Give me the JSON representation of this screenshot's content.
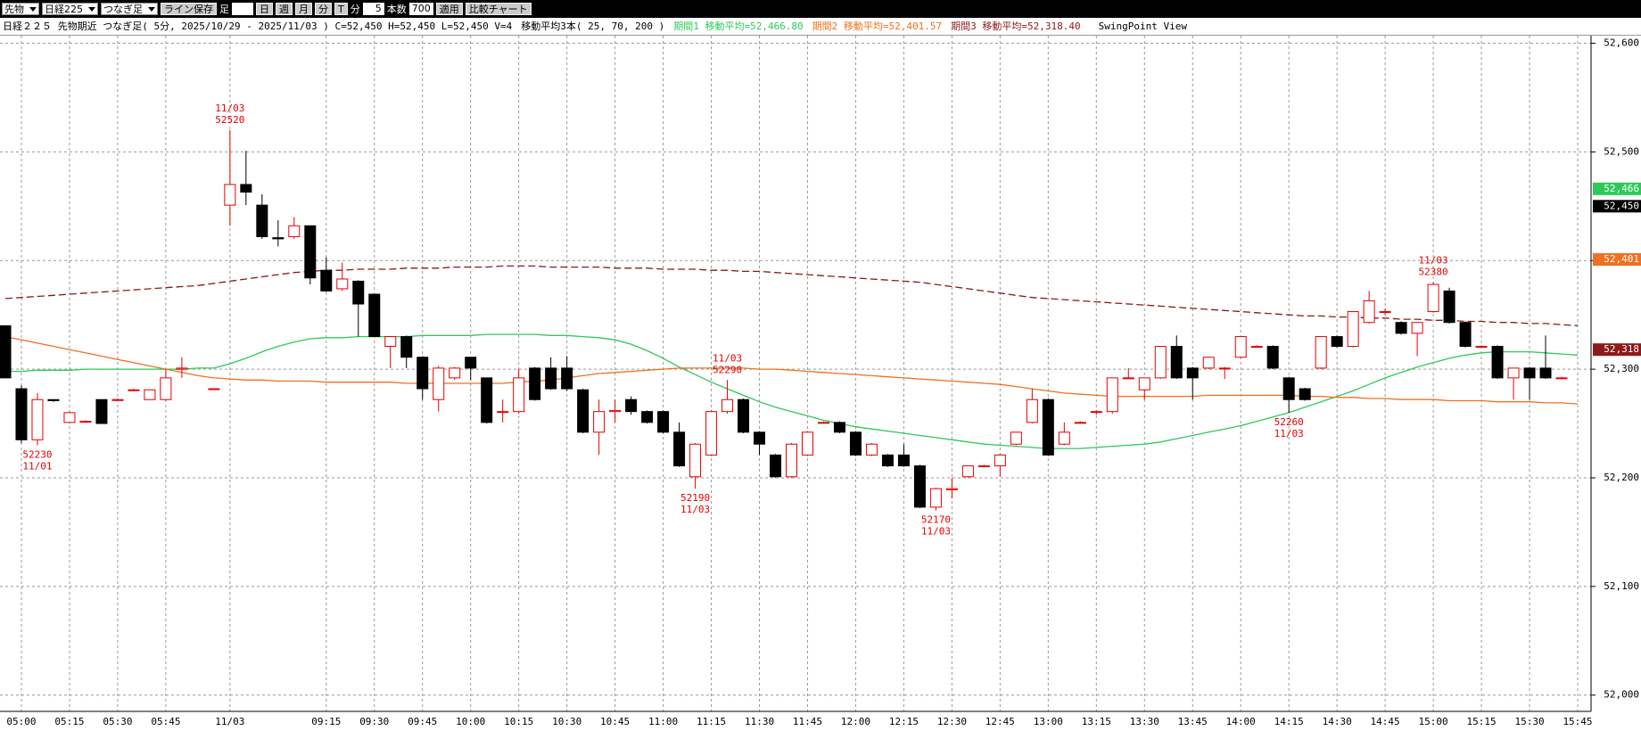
{
  "toolbar": [
    "先物",
    "日経225",
    "つなぎ足",
    "ライン保存",
    "足",
    "日",
    "週",
    "月",
    "分",
    "T",
    "分",
    "5",
    "本数",
    "700",
    "適用",
    "比較チャート"
  ],
  "header": {
    "title": "日経２２５ 先物期近 つなぎ足( 5分, 2025/10/29 - 2025/11/03 ) C=52,450 H=52,450 L=52,450 V=4",
    "ma_settings": "移動平均3本( 25, 70, 200 )",
    "view": "SwingPoint View"
  },
  "chart_data": {
    "type": "candlestick",
    "categories": [
      null,
      "05:00",
      null,
      null,
      "05:15",
      null,
      null,
      "05:30",
      null,
      null,
      "05:45",
      null,
      null,
      null,
      "11/03",
      null,
      null,
      null,
      null,
      null,
      "09:15",
      null,
      null,
      "09:30",
      null,
      null,
      "09:45",
      null,
      null,
      "10:00",
      null,
      null,
      "10:15",
      null,
      null,
      "10:30",
      null,
      null,
      "10:45",
      null,
      null,
      "11:00",
      null,
      null,
      "11:15",
      null,
      null,
      "11:30",
      null,
      null,
      "11:45",
      null,
      null,
      "12:00",
      null,
      null,
      "12:15",
      null,
      null,
      "12:30",
      null,
      null,
      "12:45",
      null,
      null,
      "13:00",
      null,
      null,
      "13:15",
      null,
      null,
      "13:30",
      null,
      null,
      "13:45",
      null,
      null,
      "14:00",
      null,
      null,
      "14:15",
      null,
      null,
      "14:30",
      null,
      null,
      "14:45",
      null,
      null,
      "15:00",
      null,
      null,
      "15:15",
      null,
      null,
      "15:30",
      null,
      null,
      "15:45"
    ],
    "open": [
      52340,
      52282,
      52235,
      52272,
      52251,
      52252,
      52272,
      52272,
      52281,
      52272,
      52272,
      52300,
      null,
      52282,
      52451,
      52470,
      52451,
      52421,
      52422,
      52432,
      52391,
      52374,
      52381,
      52369,
      52321,
      52330,
      52311,
      52272,
      52292,
      52311,
      52292,
      52261,
      52261,
      52301,
      52301,
      52301,
      52281,
      52242,
      52261,
      52272,
      52261,
      52261,
      52242,
      52201,
      52221,
      52261,
      52272,
      52242,
      52221,
      52201,
      52221,
      52251,
      52251,
      52242,
      52221,
      52221,
      52221,
      52211,
      52173,
      52189,
      52201,
      52211,
      52211,
      52231,
      52251,
      52272,
      52231,
      52251,
      52261,
      52261,
      52292,
      52281,
      52292,
      52321,
      52301,
      52301,
      52301,
      52311,
      52321,
      52321,
      52292,
      52282,
      52301,
      52330,
      52321,
      52343,
      52353,
      52343,
      52333,
      52353,
      52372,
      52343,
      52321,
      52321,
      52292,
      52301,
      52301,
      52292,
      null
    ],
    "high": [
      52340,
      52285,
      52278,
      52272,
      52261,
      52253,
      52272,
      52273,
      52282,
      52281,
      52300,
      52311,
      null,
      52282,
      52520,
      52501,
      52461,
      52437,
      52440,
      52432,
      52403,
      52398,
      52382,
      52369,
      52330,
      52331,
      52312,
      52303,
      52302,
      52311,
      52292,
      52272,
      52300,
      52302,
      52311,
      52312,
      52282,
      52272,
      52272,
      52275,
      52262,
      52262,
      52251,
      52232,
      52262,
      52290,
      52273,
      52243,
      52222,
      52232,
      52243,
      52252,
      52252,
      52243,
      52232,
      52222,
      52231,
      52212,
      52191,
      52200,
      52211,
      52212,
      52222,
      52242,
      52282,
      52273,
      52251,
      52252,
      52262,
      52292,
      52301,
      52292,
      52321,
      52331,
      52302,
      52311,
      52302,
      52330,
      52322,
      52322,
      52293,
      52283,
      52330,
      52331,
      52353,
      52372,
      52356,
      52344,
      52343,
      52380,
      52375,
      52344,
      52322,
      52322,
      52301,
      52302,
      52331,
      52293,
      null
    ],
    "low": [
      52292,
      52232,
      52230,
      52270,
      52250,
      52251,
      52250,
      52271,
      52280,
      52272,
      52271,
      52292,
      null,
      52282,
      52432,
      52451,
      52420,
      52413,
      52420,
      52378,
      52371,
      52372,
      52330,
      52330,
      52301,
      52301,
      52272,
      52261,
      52290,
      52290,
      52250,
      52251,
      52259,
      52271,
      52281,
      52280,
      52241,
      52221,
      52251,
      52258,
      52250,
      52241,
      52210,
      52190,
      52220,
      52259,
      52241,
      52221,
      52200,
      52200,
      52220,
      52250,
      52241,
      52220,
      52220,
      52210,
      52210,
      52172,
      52170,
      52181,
      52200,
      52210,
      52201,
      52230,
      52250,
      52220,
      52230,
      52250,
      52258,
      52259,
      52291,
      52272,
      52291,
      52291,
      52272,
      52300,
      52291,
      52310,
      52320,
      52300,
      52260,
      52271,
      52300,
      52320,
      52320,
      52342,
      52350,
      52332,
      52312,
      52352,
      52342,
      52320,
      52320,
      52291,
      52272,
      52272,
      52291,
      52291,
      null
    ],
    "close": [
      52292,
      52235,
      52272,
      52271,
      52260,
      52252,
      52250,
      52272,
      52281,
      52281,
      52292,
      52301,
      null,
      52282,
      52470,
      52463,
      52422,
      52420,
      52432,
      52384,
      52372,
      52383,
      52360,
      52330,
      52330,
      52311,
      52282,
      52301,
      52301,
      52301,
      52251,
      52261,
      52292,
      52272,
      52282,
      52282,
      52242,
      52261,
      52262,
      52261,
      52251,
      52242,
      52211,
      52231,
      52261,
      52272,
      52242,
      52231,
      52201,
      52231,
      52242,
      52251,
      52242,
      52221,
      52231,
      52211,
      52211,
      52173,
      52190,
      52190,
      52211,
      52211,
      52221,
      52242,
      52272,
      52221,
      52242,
      52251,
      52261,
      52292,
      52292,
      52292,
      52321,
      52292,
      52292,
      52311,
      52301,
      52330,
      52321,
      52301,
      52272,
      52272,
      52330,
      52321,
      52353,
      52363,
      52353,
      52333,
      52343,
      52378,
      52343,
      52321,
      52321,
      52292,
      52301,
      52292,
      52292,
      52292,
      null
    ],
    "up_color": "#e60000",
    "down_color": "#000000",
    "lines": [
      {
        "name": "期間1 移動平均=52,466.80",
        "color": "#2ec95a",
        "dash": false,
        "values": [
          52298,
          52298,
          52299,
          52299,
          52299,
          52300,
          52300,
          52300,
          52300,
          52300,
          52300,
          52300,
          52301,
          52301,
          52305,
          52310,
          52316,
          52321,
          52325,
          52328,
          52329,
          52329,
          52330,
          52330,
          52330,
          52330,
          52331,
          52331,
          52331,
          52331,
          52332,
          52332,
          52332,
          52332,
          52331,
          52331,
          52330,
          52329,
          52327,
          52323,
          52317,
          52310,
          52302,
          52295,
          52288,
          52282,
          52276,
          52270,
          52265,
          52261,
          52257,
          52253,
          52250,
          52247,
          52245,
          52243,
          52241,
          52239,
          52237,
          52235,
          52233,
          52231,
          52230,
          52229,
          52228,
          52227,
          52227,
          52227,
          52228,
          52229,
          52230,
          52231,
          52233,
          52236,
          52239,
          52242,
          52245,
          52248,
          52252,
          52256,
          52260,
          52265,
          52270,
          52275,
          52280,
          52286,
          52292,
          52297,
          52302,
          52306,
          52310,
          52313,
          52315,
          52316,
          52316,
          52316,
          52315,
          52314,
          52313
        ]
      },
      {
        "name": "期間2 移動平均=52,401.57",
        "color": "#f07020",
        "dash": false,
        "values": [
          52330,
          52327,
          52324,
          52321,
          52318,
          52315,
          52312,
          52309,
          52306,
          52303,
          52300,
          52297,
          52294,
          52292,
          52291,
          52290,
          52290,
          52289,
          52289,
          52289,
          52288,
          52288,
          52288,
          52288,
          52288,
          52287,
          52287,
          52287,
          52287,
          52287,
          52287,
          52287,
          52288,
          52289,
          52290,
          52292,
          52294,
          52296,
          52297,
          52298,
          52299,
          52300,
          52301,
          52301,
          52301,
          52301,
          52301,
          52300,
          52300,
          52299,
          52298,
          52297,
          52296,
          52295,
          52294,
          52293,
          52292,
          52291,
          52290,
          52289,
          52288,
          52287,
          52286,
          52284,
          52282,
          52280,
          52278,
          52277,
          52276,
          52275,
          52275,
          52275,
          52275,
          52275,
          52275,
          52276,
          52276,
          52276,
          52276,
          52276,
          52276,
          52275,
          52275,
          52274,
          52274,
          52273,
          52273,
          52272,
          52272,
          52272,
          52271,
          52271,
          52271,
          52270,
          52270,
          52270,
          52269,
          52269,
          52268
        ]
      },
      {
        "name": "期間3 移動平均=52,318.40",
        "color": "#8b1a1a",
        "dash": true,
        "values": [
          52365,
          52366,
          52367,
          52368,
          52369,
          52370,
          52371,
          52372,
          52373,
          52374,
          52375,
          52376,
          52377,
          52379,
          52381,
          52383,
          52385,
          52387,
          52389,
          52390,
          52391,
          52391,
          52392,
          52392,
          52392,
          52393,
          52393,
          52393,
          52394,
          52394,
          52394,
          52395,
          52395,
          52395,
          52394,
          52394,
          52394,
          52394,
          52393,
          52393,
          52393,
          52392,
          52392,
          52392,
          52391,
          52391,
          52390,
          52390,
          52389,
          52388,
          52387,
          52386,
          52385,
          52384,
          52383,
          52382,
          52381,
          52380,
          52378,
          52376,
          52374,
          52372,
          52370,
          52368,
          52366,
          52365,
          52364,
          52363,
          52362,
          52361,
          52360,
          52359,
          52358,
          52357,
          52356,
          52355,
          52354,
          52353,
          52352,
          52351,
          52350,
          52349,
          52349,
          52348,
          52348,
          52347,
          52347,
          52346,
          52346,
          52345,
          52345,
          52344,
          52344,
          52343,
          52343,
          52342,
          52342,
          52341,
          52340
        ]
      }
    ],
    "ylim": [
      51985,
      52607
    ],
    "yticks": [
      {
        "value": 52000,
        "label": "52,000"
      },
      {
        "value": 52100,
        "label": "52,100"
      },
      {
        "value": 52200,
        "label": "52,200"
      },
      {
        "value": 52300,
        "label": "52,300"
      },
      {
        "value": 52400,
        "label": "52,400"
      },
      {
        "value": 52500,
        "label": "52,500"
      },
      {
        "value": 52600,
        "label": "52,600"
      }
    ],
    "grid": true,
    "price_tags": [
      {
        "value": 52466,
        "label": "52,466",
        "color": "#2ec95a"
      },
      {
        "value": 52450,
        "label": "52,450",
        "color": "#000000"
      },
      {
        "value": 52401,
        "label": "52,401",
        "color": "#f07020"
      },
      {
        "value": 52318,
        "label": "52,318",
        "color": "#8b1a1a"
      }
    ],
    "swing_highs": [
      {
        "date": "11/03",
        "price": 52520
      },
      {
        "date": "11/03",
        "price": 52290
      },
      {
        "date": "11/03",
        "price": 52380
      }
    ],
    "swing_lows": [
      {
        "price": 52230,
        "date": "11/01"
      },
      {
        "price": 52190,
        "date": "11/03"
      },
      {
        "price": 52170,
        "date": "11/03"
      },
      {
        "price": 52260,
        "date": "11/03"
      }
    ]
  }
}
